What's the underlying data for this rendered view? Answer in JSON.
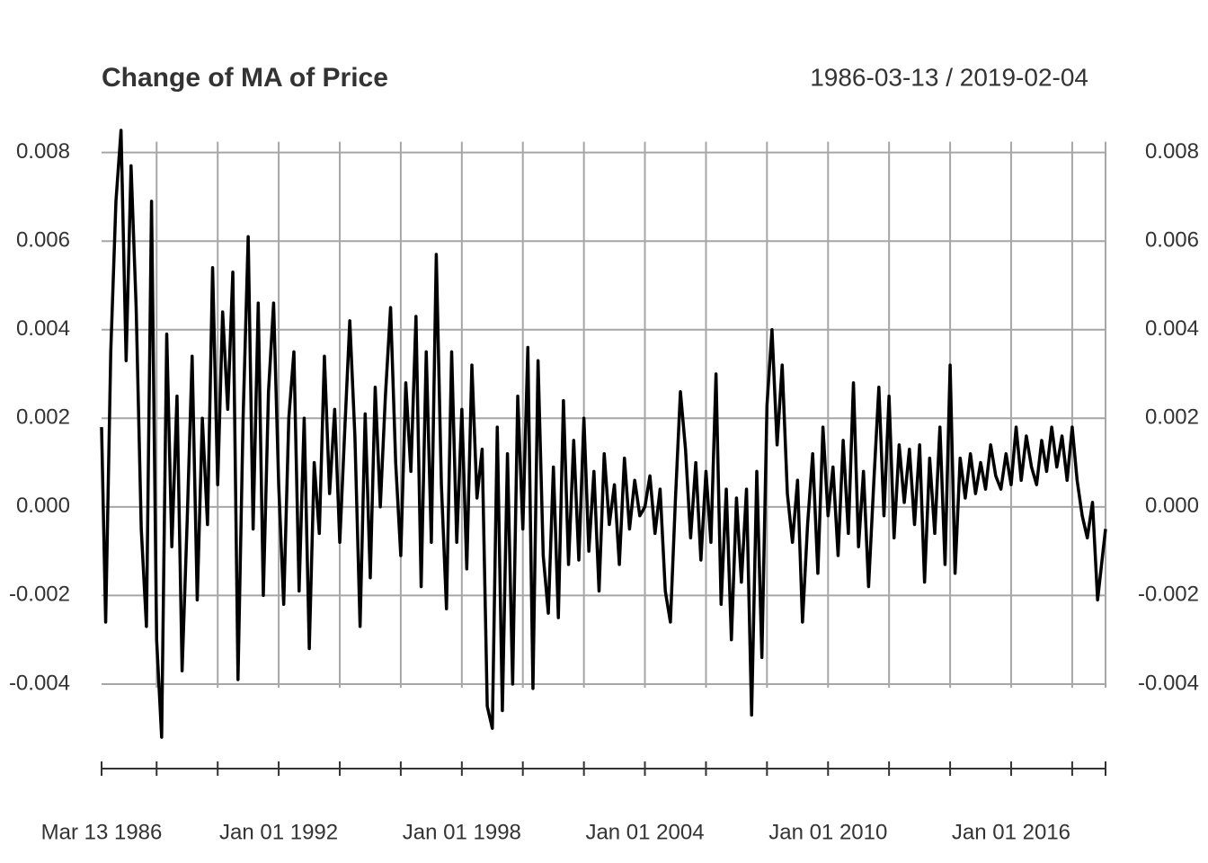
{
  "chart_data": {
    "type": "line",
    "title": "Change of MA of Price",
    "date_range": "1986-03-13 / 2019-02-04",
    "color": "#000000",
    "grid": true,
    "xlim": [
      "1986-03-13",
      "2019-02-04"
    ],
    "xticks": [
      {
        "value": "1986-03-13",
        "label": "Mar 13 1986"
      },
      {
        "value": "1992-01-01",
        "label": "Jan 01 1992"
      },
      {
        "value": "1998-01-01",
        "label": "Jan 01 1998"
      },
      {
        "value": "2004-01-01",
        "label": "Jan 01 2004"
      },
      {
        "value": "2010-01-01",
        "label": "Jan 01 2010"
      },
      {
        "value": "2016-01-01",
        "label": "Jan 01 2016"
      }
    ],
    "xminor": [
      "1988-01-01",
      "1990-01-01",
      "1994-01-01",
      "1996-01-01",
      "2000-01-01",
      "2002-01-01",
      "2006-01-01",
      "2008-01-01",
      "2012-01-01",
      "2014-01-01",
      "2018-01-01",
      "2019-02-04"
    ],
    "ylim": [
      -0.0053,
      0.0085
    ],
    "yticks": [
      -0.004,
      -0.002,
      {
        "value": 0,
        "label": "0.000"
      },
      0.002,
      0.004,
      0.006,
      0.008
    ],
    "x": [
      "1986-03-13",
      "1986-05-01",
      "1986-07-01",
      "1986-09-01",
      "1986-11-01",
      "1987-01-01",
      "1987-03-01",
      "1987-05-01",
      "1987-07-01",
      "1987-09-01",
      "1987-11-01",
      "1988-01-01",
      "1988-03-01",
      "1988-05-01",
      "1988-07-01",
      "1988-09-01",
      "1988-11-01",
      "1989-01-01",
      "1989-03-01",
      "1989-05-01",
      "1989-07-01",
      "1989-09-01",
      "1989-11-01",
      "1990-01-01",
      "1990-03-01",
      "1990-05-01",
      "1990-07-01",
      "1990-09-01",
      "1990-11-01",
      "1991-01-01",
      "1991-03-01",
      "1991-05-01",
      "1991-07-01",
      "1991-09-01",
      "1991-11-01",
      "1992-01-01",
      "1992-03-01",
      "1992-05-01",
      "1992-07-01",
      "1992-09-01",
      "1992-11-01",
      "1993-01-01",
      "1993-03-01",
      "1993-05-01",
      "1993-07-01",
      "1993-09-01",
      "1993-11-01",
      "1994-01-01",
      "1994-03-01",
      "1994-05-01",
      "1994-07-01",
      "1994-09-01",
      "1994-11-01",
      "1995-01-01",
      "1995-03-01",
      "1995-05-01",
      "1995-07-01",
      "1995-09-01",
      "1995-11-01",
      "1996-01-01",
      "1996-03-01",
      "1996-05-01",
      "1996-07-01",
      "1996-09-01",
      "1996-11-01",
      "1997-01-01",
      "1997-03-01",
      "1997-05-01",
      "1997-07-01",
      "1997-09-01",
      "1997-11-01",
      "1998-01-01",
      "1998-03-01",
      "1998-05-01",
      "1998-07-01",
      "1998-09-01",
      "1998-11-01",
      "1999-01-01",
      "1999-03-01",
      "1999-05-01",
      "1999-07-01",
      "1999-09-01",
      "1999-11-01",
      "2000-01-01",
      "2000-03-01",
      "2000-05-01",
      "2000-07-01",
      "2000-09-01",
      "2000-11-01",
      "2001-01-01",
      "2001-03-01",
      "2001-05-01",
      "2001-07-01",
      "2001-09-01",
      "2001-11-01",
      "2002-01-01",
      "2002-03-01",
      "2002-05-01",
      "2002-07-01",
      "2002-09-01",
      "2002-11-01",
      "2003-01-01",
      "2003-03-01",
      "2003-05-01",
      "2003-07-01",
      "2003-09-01",
      "2003-11-01",
      "2004-01-01",
      "2004-03-01",
      "2004-05-01",
      "2004-07-01",
      "2004-09-01",
      "2004-11-01",
      "2005-01-01",
      "2005-03-01",
      "2005-05-01",
      "2005-07-01",
      "2005-09-01",
      "2005-11-01",
      "2006-01-01",
      "2006-03-01",
      "2006-05-01",
      "2006-07-01",
      "2006-09-01",
      "2006-11-01",
      "2007-01-01",
      "2007-03-01",
      "2007-05-01",
      "2007-07-01",
      "2007-09-01",
      "2007-11-01",
      "2008-01-01",
      "2008-03-01",
      "2008-05-01",
      "2008-07-01",
      "2008-09-01",
      "2008-11-01",
      "2009-01-01",
      "2009-03-01",
      "2009-05-01",
      "2009-07-01",
      "2009-09-01",
      "2009-11-01",
      "2010-01-01",
      "2010-03-01",
      "2010-05-01",
      "2010-07-01",
      "2010-09-01",
      "2010-11-01",
      "2011-01-01",
      "2011-03-01",
      "2011-05-01",
      "2011-07-01",
      "2011-09-01",
      "2011-11-01",
      "2012-01-01",
      "2012-03-01",
      "2012-05-01",
      "2012-07-01",
      "2012-09-01",
      "2012-11-01",
      "2013-01-01",
      "2013-03-01",
      "2013-05-01",
      "2013-07-01",
      "2013-09-01",
      "2013-11-01",
      "2014-01-01",
      "2014-03-01",
      "2014-05-01",
      "2014-07-01",
      "2014-09-01",
      "2014-11-01",
      "2015-01-01",
      "2015-03-01",
      "2015-05-01",
      "2015-07-01",
      "2015-09-01",
      "2015-11-01",
      "2016-01-01",
      "2016-03-01",
      "2016-05-01",
      "2016-07-01",
      "2016-09-01",
      "2016-11-01",
      "2017-01-01",
      "2017-03-01",
      "2017-05-01",
      "2017-07-01",
      "2017-09-01",
      "2017-11-01",
      "2018-01-01",
      "2018-03-01",
      "2018-05-01",
      "2018-07-01",
      "2018-09-01",
      "2018-11-01",
      "2019-02-04"
    ],
    "values": [
      0.0018,
      -0.0026,
      0.0035,
      0.0069,
      0.0085,
      0.0033,
      0.0077,
      0.0045,
      -0.0005,
      -0.0027,
      0.0069,
      -0.003,
      -0.0052,
      0.0039,
      -0.0009,
      0.0025,
      -0.0037,
      -0.0003,
      0.0034,
      -0.0021,
      0.002,
      -0.0004,
      0.0054,
      0.0005,
      0.0044,
      0.0022,
      0.0053,
      -0.0039,
      0.002,
      0.0061,
      -0.0005,
      0.0046,
      -0.002,
      0.0026,
      0.0046,
      0.0005,
      -0.0022,
      0.002,
      0.0035,
      -0.0019,
      0.002,
      -0.0032,
      0.001,
      -0.0006,
      0.0034,
      0.0003,
      0.0022,
      -0.0008,
      0.0017,
      0.0042,
      0.0016,
      -0.0027,
      0.0021,
      -0.0016,
      0.0027,
      0.0,
      0.0025,
      0.0045,
      0.001,
      -0.0011,
      0.0028,
      0.0008,
      0.0043,
      -0.0018,
      0.0035,
      -0.0008,
      0.0057,
      0.0005,
      -0.0023,
      0.0035,
      -0.0008,
      0.0022,
      -0.0014,
      0.0032,
      0.0002,
      0.0013,
      -0.0045,
      -0.005,
      0.0018,
      -0.0046,
      0.0012,
      -0.004,
      0.0025,
      -0.0005,
      0.0036,
      -0.0041,
      0.0033,
      -0.0011,
      -0.0024,
      0.0009,
      -0.0025,
      0.0024,
      -0.0013,
      0.0015,
      -0.0012,
      0.002,
      -0.001,
      0.0008,
      -0.0019,
      0.0012,
      -0.0004,
      0.0005,
      -0.0013,
      0.0011,
      -0.0005,
      0.0006,
      -0.0002,
      0.0,
      0.0007,
      -0.0006,
      0.0004,
      -0.0019,
      -0.0026,
      0.0002,
      0.0026,
      0.0013,
      -0.0007,
      0.001,
      -0.0012,
      0.0008,
      -0.0008,
      0.003,
      -0.0022,
      0.0004,
      -0.003,
      0.0002,
      -0.0017,
      0.0004,
      -0.0047,
      0.0008,
      -0.0034,
      0.0023,
      0.004,
      0.0014,
      0.0032,
      0.0003,
      -0.0008,
      0.0006,
      -0.0026,
      -0.0004,
      0.0012,
      -0.0015,
      0.0018,
      -0.0002,
      0.0009,
      -0.0011,
      0.0015,
      -0.0006,
      0.0028,
      -0.0009,
      0.0008,
      -0.0018,
      0.0005,
      0.0027,
      -0.0002,
      0.0025,
      -0.0007,
      0.0014,
      0.0001,
      0.0013,
      -0.0004,
      0.0014,
      -0.0017,
      0.0011,
      -0.0006,
      0.0018,
      -0.0013,
      0.0032,
      -0.0015,
      0.0011,
      0.0002,
      0.0012,
      0.0003,
      0.001,
      0.0004,
      0.0014,
      0.0007,
      0.0004,
      0.0012,
      0.0005,
      0.0018,
      0.0006,
      0.0016,
      0.0009,
      0.0005,
      0.0015,
      0.0008,
      0.0018,
      0.0009,
      0.0016,
      0.0006,
      0.0018,
      0.0006,
      -0.0002,
      -0.0007,
      0.0001,
      -0.0021,
      -0.0005
    ]
  }
}
